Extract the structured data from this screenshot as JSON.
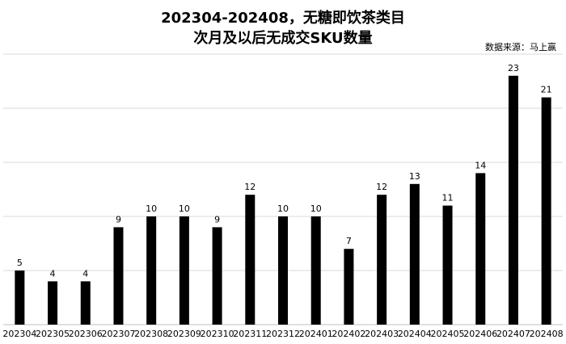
{
  "chart_data": {
    "type": "bar",
    "title": "202304-202408，无糖即饮茶类目",
    "subtitle": "次月及以后无成交SKU数量",
    "source": "数据来源：马上赢",
    "categories": [
      "202304",
      "202305",
      "202306",
      "202307",
      "202308",
      "202309",
      "202310",
      "202311",
      "202312",
      "202401",
      "202402",
      "202403",
      "202404",
      "202405",
      "202406",
      "202407",
      "202408"
    ],
    "values": [
      5,
      4,
      4,
      9,
      10,
      10,
      9,
      12,
      10,
      10,
      7,
      12,
      13,
      11,
      14,
      23,
      21
    ],
    "ylim": [
      0,
      25
    ],
    "grid": true,
    "bar_color": "#000000",
    "grid_color": "#d9d9d9"
  }
}
